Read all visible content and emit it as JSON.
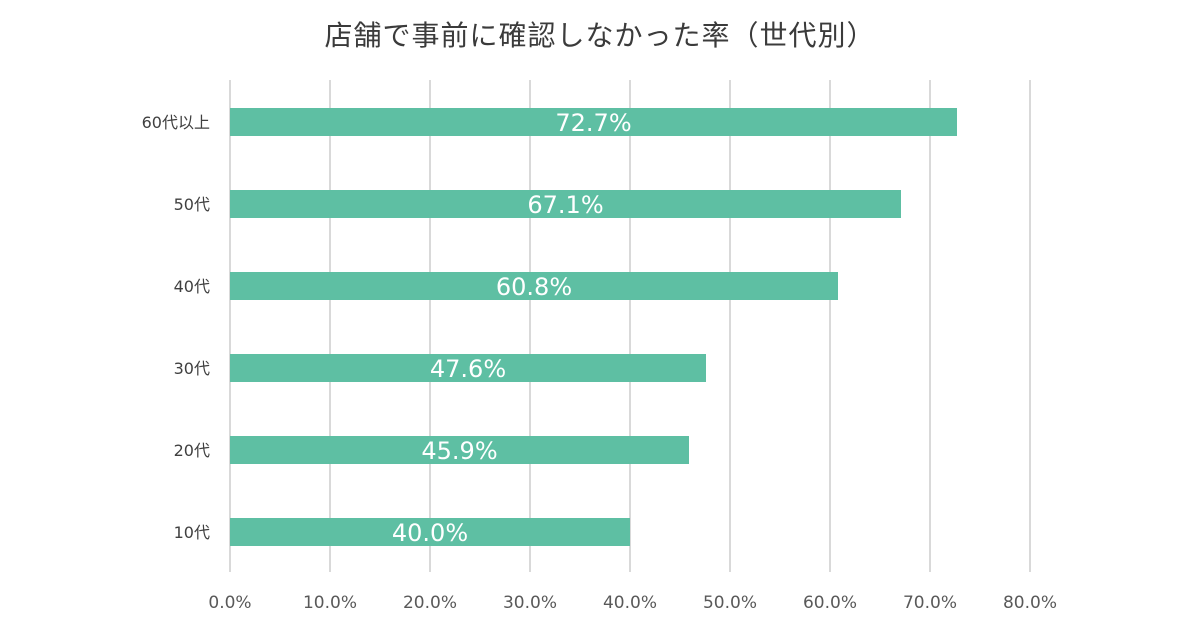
{
  "chart_data": {
    "type": "bar",
    "orientation": "horizontal",
    "title": "店舗で事前に確認しなかった率（世代別）",
    "categories": [
      "60代以上",
      "50代",
      "40代",
      "30代",
      "20代",
      "10代"
    ],
    "values": [
      72.7,
      67.1,
      60.8,
      47.6,
      45.9,
      40.0
    ],
    "data_labels": [
      "72.7%",
      "67.1%",
      "60.8%",
      "47.6%",
      "45.9%",
      "40.0%"
    ],
    "x_ticks": [
      "0.0%",
      "10.0%",
      "20.0%",
      "30.0%",
      "40.0%",
      "50.0%",
      "60.0%",
      "70.0%",
      "80.0%"
    ],
    "xlim": [
      0,
      80
    ],
    "grid": true,
    "legend": "none",
    "bar_color": "#5ebfa3",
    "grid_color": "#d9d9d9"
  }
}
